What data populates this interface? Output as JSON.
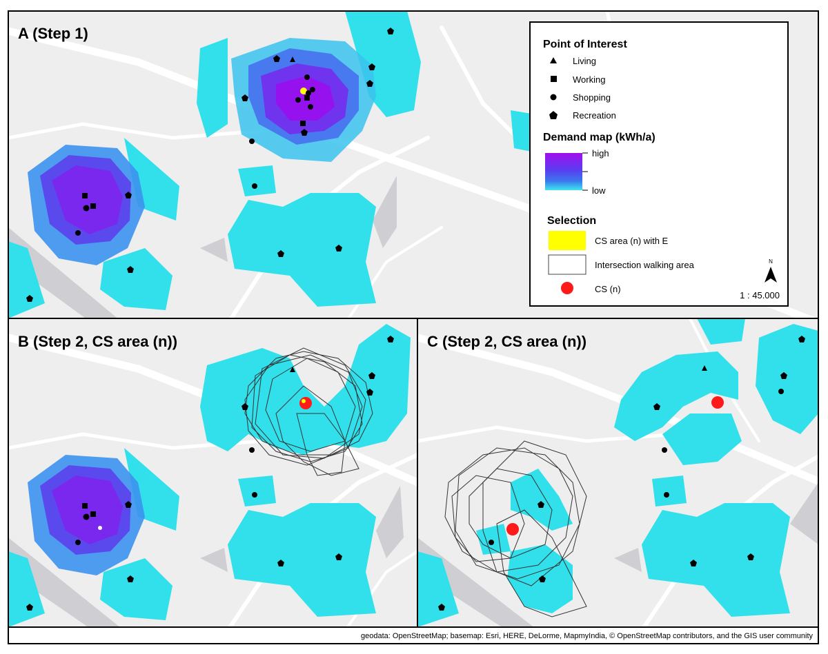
{
  "panels": {
    "a": {
      "label": "A (Step 1)"
    },
    "b": {
      "label": "B (Step 2, CS area (n))"
    },
    "c": {
      "label": "C (Step 2, CS area (n))"
    }
  },
  "legend": {
    "poi_title": "Point of Interest",
    "poi_items": [
      {
        "label": "Living",
        "icon": "triangle-icon"
      },
      {
        "label": "Working",
        "icon": "square-icon"
      },
      {
        "label": "Shopping",
        "icon": "circle-icon"
      },
      {
        "label": "Recreation",
        "icon": "pentagon-icon"
      }
    ],
    "demand_title": "Demand map (kWh/a)",
    "demand_high": "high",
    "demand_low": "low",
    "selection_title": "Selection",
    "selection_items": [
      {
        "label": "CS area (n) with E",
        "icon": "yellow-swatch-icon"
      },
      {
        "label": "Intersection walking area",
        "icon": "outline-swatch-icon"
      },
      {
        "label": "CS (n)",
        "icon": "red-dot-icon"
      }
    ],
    "north_label": "N",
    "scale": "1 : 45.000"
  },
  "attribution": "geodata: OpenStreetMap; basemap: Esri, HERE, DeLorme, MapmyIndia, © OpenStreetMap contributors, and the GIS user community",
  "colors": {
    "basemap": "#eeeeee",
    "road": "#ffffff",
    "water": "#cfcfd3",
    "catchment": "#31e0ea",
    "demand_high": "#9a12ee",
    "demand_mid": "#4c58ee",
    "demand_low": "#3fd4ee",
    "cs_area": "#ffff00",
    "cs_point": "#ff1a1a",
    "walking_outline": "#333333"
  }
}
